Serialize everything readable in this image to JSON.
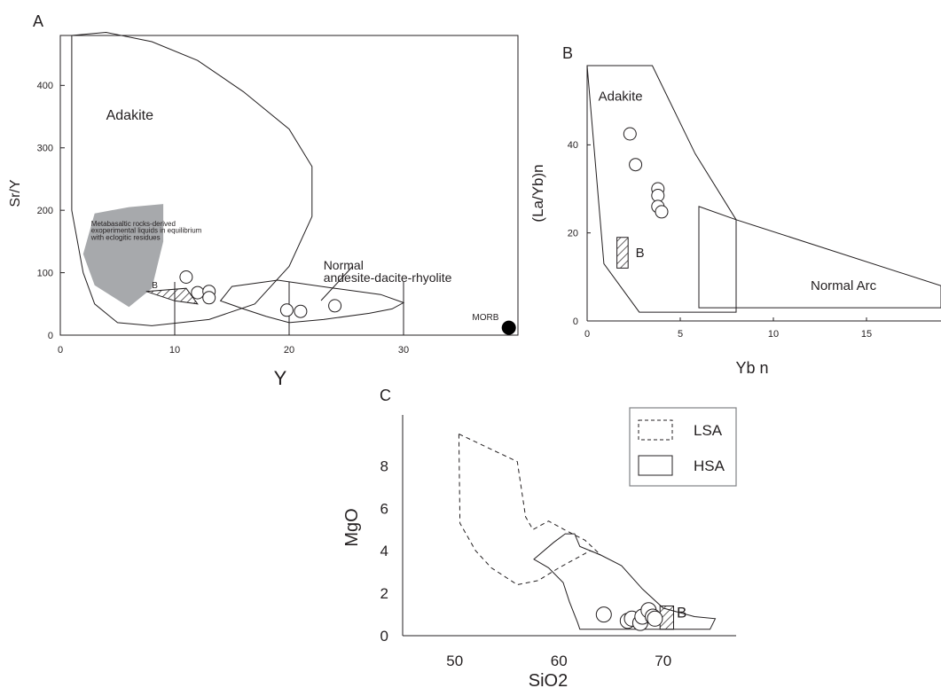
{
  "chart_data": [
    {
      "panel": "A",
      "type": "scatter",
      "xlabel": "Y",
      "ylabel": "Sr/Y",
      "xlim": [
        0,
        40
      ],
      "ylim": [
        0,
        480
      ],
      "x_ticks": [
        0,
        10,
        20,
        30
      ],
      "y_ticks": [
        0,
        100,
        200,
        300,
        400
      ],
      "fields": [
        {
          "label": "Adakite",
          "points": [
            [
              1,
              480
            ],
            [
              4,
              485
            ],
            [
              8,
              470
            ],
            [
              12,
              440
            ],
            [
              16,
              390
            ],
            [
              20,
              330
            ],
            [
              22,
              270
            ],
            [
              22,
              190
            ],
            [
              20,
              110
            ],
            [
              17,
              50
            ],
            [
              13,
              25
            ],
            [
              8,
              15
            ],
            [
              5,
              20
            ],
            [
              3,
              50
            ],
            [
              2,
              100
            ],
            [
              1,
              200
            ],
            [
              1,
              350
            ]
          ]
        },
        {
          "label": "Normal andesite-dacite-rhyolite",
          "points": [
            [
              14,
              55
            ],
            [
              16,
              42
            ],
            [
              18,
              30
            ],
            [
              20,
              20
            ],
            [
              23,
              25
            ],
            [
              27,
              35
            ],
            [
              29,
              42
            ],
            [
              30,
              52
            ],
            [
              28,
              65
            ],
            [
              24,
              75
            ],
            [
              19,
              88
            ],
            [
              15,
              78
            ]
          ]
        },
        {
          "label": "Metabasaltic rocks-derived exoperimental liquids in equilibrium with eclogitic residues",
          "points": [
            [
              3,
              195
            ],
            [
              6,
              205
            ],
            [
              9,
              210
            ],
            [
              9,
              150
            ],
            [
              8,
              75
            ],
            [
              6,
              45
            ],
            [
              3,
              80
            ],
            [
              2,
              130
            ]
          ],
          "fill": "#a7a9ac"
        }
      ],
      "field_labels": [
        {
          "text": "Adakite",
          "x": 4,
          "y": 345
        },
        {
          "text": "Normal",
          "x": 23,
          "y": 105
        },
        {
          "text": "andesite-dacite-rhyolite",
          "x": 23,
          "y": 85
        },
        {
          "text": "Metabasaltic rocks-derived",
          "x": 2.7,
          "y": 175
        },
        {
          "text": "exoperimental liquids in equilibrium",
          "x": 2.7,
          "y": 164
        },
        {
          "text": "with eclogitic residues",
          "x": 2.7,
          "y": 153
        },
        {
          "text": "B",
          "x": 8,
          "y": 75
        },
        {
          "text": "MORB",
          "x": 36,
          "y": 24
        }
      ],
      "hatched_box": {
        "label": "B",
        "points": [
          [
            7.5,
            70
          ],
          [
            11,
            75
          ],
          [
            12,
            50
          ],
          [
            10,
            55
          ],
          [
            7.5,
            70
          ]
        ]
      },
      "samples": [
        {
          "x": 11.0,
          "y": 93
        },
        {
          "x": 12.0,
          "y": 68
        },
        {
          "x": 13.0,
          "y": 70
        },
        {
          "x": 13.0,
          "y": 60
        },
        {
          "x": 19.8,
          "y": 40
        },
        {
          "x": 21.0,
          "y": 38
        },
        {
          "x": 24.0,
          "y": 47
        }
      ],
      "morb": {
        "x": 39.2,
        "y": 12
      }
    },
    {
      "panel": "B",
      "type": "scatter",
      "xlabel": "Yb n",
      "ylabel": "(La/Yb)n",
      "xlim": [
        0,
        19
      ],
      "ylim": [
        0,
        58
      ],
      "x_ticks": [
        0,
        5,
        10,
        15
      ],
      "y_ticks": [
        0,
        20,
        40
      ],
      "fields": [
        {
          "label": "Adakite",
          "points": [
            [
              0,
              58
            ],
            [
              0.9,
              13
            ],
            [
              2.8,
              2
            ],
            [
              8,
              2
            ],
            [
              8,
              23
            ],
            [
              5.8,
              38
            ],
            [
              3.5,
              58
            ]
          ]
        },
        {
          "label": "Normal Arc",
          "points": [
            [
              6,
              26
            ],
            [
              8,
              23
            ],
            [
              19,
              8
            ],
            [
              19,
              3
            ],
            [
              6,
              3
            ]
          ]
        }
      ],
      "field_labels": [
        {
          "text": "Adakite",
          "x": 0.6,
          "y": 50
        },
        {
          "text": "Normal Arc",
          "x": 12,
          "y": 7
        },
        {
          "text": "B",
          "x": 2.6,
          "y": 14.5
        }
      ],
      "hatched_box": {
        "label": "B",
        "points": [
          [
            1.6,
            19
          ],
          [
            2.2,
            19
          ],
          [
            2.2,
            12
          ],
          [
            1.6,
            12
          ]
        ]
      },
      "samples": [
        {
          "x": 2.3,
          "y": 42.5
        },
        {
          "x": 2.6,
          "y": 35.5
        },
        {
          "x": 3.8,
          "y": 30
        },
        {
          "x": 3.8,
          "y": 28.5
        },
        {
          "x": 3.8,
          "y": 26
        },
        {
          "x": 4.0,
          "y": 24.8
        }
      ]
    },
    {
      "panel": "C",
      "type": "scatter",
      "xlabel": "SiO2",
      "ylabel": "MgO",
      "xlim": [
        45,
        77
      ],
      "ylim": [
        0,
        10.4
      ],
      "x_ticks": [
        50,
        60,
        70
      ],
      "y_ticks": [
        0,
        2,
        4,
        6,
        8
      ],
      "legend": [
        {
          "label": "LSA",
          "style": "dashed"
        },
        {
          "label": "HSA",
          "style": "solid"
        }
      ],
      "legend_position": "top-right",
      "fields": [
        {
          "label": "LSA",
          "style": "dashed",
          "points": [
            [
              50.4,
              9.5
            ],
            [
              56,
              8.2
            ],
            [
              56.8,
              5.6
            ],
            [
              57.5,
              5.0
            ],
            [
              59,
              5.4
            ],
            [
              60.5,
              5.0
            ],
            [
              62.5,
              4.5
            ],
            [
              64,
              3.8
            ],
            [
              63,
              4.0
            ],
            [
              60,
              3.2
            ],
            [
              58,
              2.6
            ],
            [
              56,
              2.4
            ],
            [
              53.5,
              3.2
            ],
            [
              52,
              4.0
            ],
            [
              50.5,
              5.3
            ]
          ]
        },
        {
          "label": "HSA",
          "style": "solid",
          "points": [
            [
              57.6,
              3.6
            ],
            [
              59.5,
              4.4
            ],
            [
              60.6,
              4.8
            ],
            [
              61.5,
              4.8
            ],
            [
              62,
              4.2
            ],
            [
              64,
              3.8
            ],
            [
              66,
              3.3
            ],
            [
              68,
              2.2
            ],
            [
              70,
              1.3
            ],
            [
              73,
              0.9
            ],
            [
              75,
              0.8
            ],
            [
              74.5,
              0.3
            ],
            [
              71,
              0.3
            ],
            [
              66,
              0.3
            ],
            [
              62,
              0.3
            ],
            [
              61.8,
              0.6
            ],
            [
              61,
              1.6
            ],
            [
              60.4,
              2.5
            ],
            [
              59,
              3.2
            ]
          ]
        }
      ],
      "field_labels": [
        {
          "text": "B",
          "x": 71.3,
          "y": 0.85
        }
      ],
      "hatched_box": {
        "label": "B",
        "points": [
          [
            69.7,
            1.4
          ],
          [
            71,
            1.4
          ],
          [
            71,
            0.3
          ],
          [
            69.7,
            0.3
          ]
        ]
      },
      "samples": [
        {
          "x": 64.3,
          "y": 1.0
        },
        {
          "x": 66.6,
          "y": 0.7
        },
        {
          "x": 67.0,
          "y": 0.8
        },
        {
          "x": 67.8,
          "y": 0.6
        },
        {
          "x": 68.0,
          "y": 0.9
        },
        {
          "x": 68.6,
          "y": 1.2
        },
        {
          "x": 69.0,
          "y": 0.9
        },
        {
          "x": 69.2,
          "y": 0.8
        }
      ]
    }
  ],
  "panel_letters": [
    "A",
    "B",
    "C"
  ]
}
